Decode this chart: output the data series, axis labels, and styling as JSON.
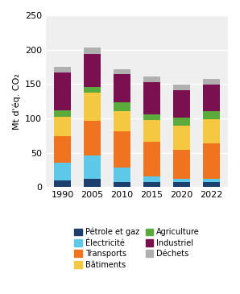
{
  "years": [
    "1990",
    "2005",
    "2010",
    "2015",
    "2020",
    "2022"
  ],
  "sector_order": [
    "Pétrole et gaz",
    "Électricité",
    "Transports",
    "Bâtiments",
    "Agriculture",
    "Industriel",
    "Déchets"
  ],
  "sectors": {
    "Pétrole et gaz": {
      "values": [
        10,
        12,
        8,
        7,
        8,
        8
      ],
      "color": "#1c3f6e"
    },
    "Électricité": {
      "values": [
        26,
        34,
        20,
        9,
        4,
        4
      ],
      "color": "#5ec8e8"
    },
    "Transports": {
      "values": [
        38,
        50,
        53,
        50,
        42,
        52
      ],
      "color": "#f07320"
    },
    "Bâtiments": {
      "values": [
        28,
        42,
        30,
        32,
        35,
        35
      ],
      "color": "#f5c842"
    },
    "Agriculture": {
      "values": [
        10,
        8,
        12,
        8,
        12,
        12
      ],
      "color": "#5aaa3c"
    },
    "Industriel": {
      "values": [
        55,
        48,
        42,
        47,
        40,
        38
      ],
      "color": "#7a1050"
    },
    "Déchets": {
      "values": [
        8,
        9,
        6,
        8,
        8,
        8
      ],
      "color": "#b0b0b0"
    }
  },
  "ylabel": "Mt d'éq. CO₂",
  "ylim": [
    0,
    250
  ],
  "yticks": [
    0,
    50,
    100,
    150,
    200,
    250
  ],
  "bg_color": "#efefef",
  "legend_cols_order": [
    [
      "Pétrole et gaz",
      "Transports",
      "Agriculture",
      "Déchets"
    ],
    [
      "Électricité",
      "Bâtiments",
      "Industriel"
    ]
  ],
  "bar_width": 0.55
}
